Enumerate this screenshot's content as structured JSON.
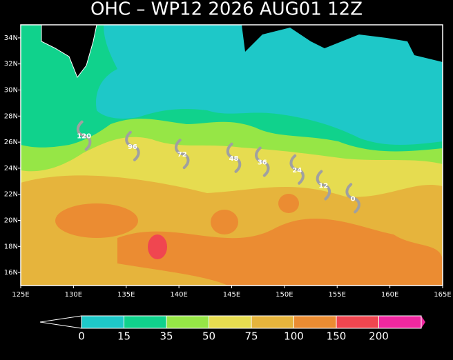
{
  "title": "OHC – WP12 2026 AUG01 12Z",
  "map": {
    "xlim": [
      125,
      165
    ],
    "ylim": [
      15,
      35
    ],
    "xticks": [
      {
        "value": 125,
        "label": "125E"
      },
      {
        "value": 130,
        "label": "130E"
      },
      {
        "value": 135,
        "label": "135E"
      },
      {
        "value": 140,
        "label": "140E"
      },
      {
        "value": 145,
        "label": "145E"
      },
      {
        "value": 150,
        "label": "150E"
      },
      {
        "value": 155,
        "label": "155E"
      },
      {
        "value": 160,
        "label": "160E"
      },
      {
        "value": 165,
        "label": "165E"
      }
    ],
    "yticks": [
      {
        "value": 16,
        "label": "16N"
      },
      {
        "value": 18,
        "label": "18N"
      },
      {
        "value": 20,
        "label": "20N"
      },
      {
        "value": 22,
        "label": "22N"
      },
      {
        "value": 24,
        "label": "24N"
      },
      {
        "value": 26,
        "label": "26N"
      },
      {
        "value": 28,
        "label": "28N"
      },
      {
        "value": 30,
        "label": "30N"
      },
      {
        "value": 32,
        "label": "32N"
      },
      {
        "value": 34,
        "label": "34N"
      }
    ]
  },
  "track": [
    {
      "hour": 120,
      "lon": 131.0,
      "lat": 26.5
    },
    {
      "hour": 96,
      "lon": 135.6,
      "lat": 25.7
    },
    {
      "hour": 72,
      "lon": 140.3,
      "lat": 25.1
    },
    {
      "hour": 48,
      "lon": 145.2,
      "lat": 24.8
    },
    {
      "hour": 36,
      "lon": 147.9,
      "lat": 24.5
    },
    {
      "hour": 24,
      "lon": 151.2,
      "lat": 23.9
    },
    {
      "hour": 12,
      "lon": 153.7,
      "lat": 22.7
    },
    {
      "hour": 0,
      "lon": 156.5,
      "lat": 21.7
    }
  ],
  "colorbar": {
    "bounds": [
      0,
      15,
      35,
      50,
      75,
      100,
      150,
      200
    ],
    "colors": [
      "#000000",
      "#1ec8c8",
      "#10d28c",
      "#96e646",
      "#e6dc50",
      "#e6b43c",
      "#eb8c32",
      "#f04650",
      "#f028a0"
    ]
  }
}
